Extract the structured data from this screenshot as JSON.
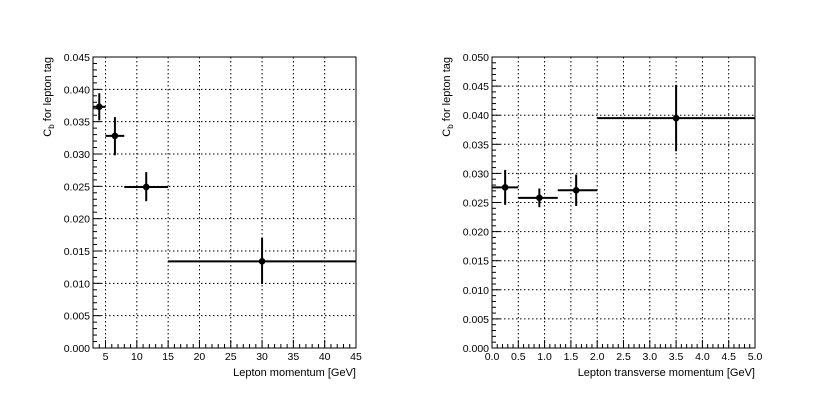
{
  "chart_data": [
    {
      "type": "scatter",
      "xlabel": "Lepton momentum [GeV]",
      "ylabel_main": "C",
      "ylabel_sub": "b",
      "ylabel_rest": " for lepton tag",
      "xlim": [
        3,
        45
      ],
      "ylim": [
        0,
        0.045
      ],
      "xticks": [
        5,
        10,
        15,
        20,
        25,
        30,
        35,
        40,
        45
      ],
      "xtick_labels": [
        "5",
        "10",
        "15",
        "20",
        "25",
        "30",
        "35",
        "40",
        "45"
      ],
      "yticks": [
        0,
        0.005,
        0.01,
        0.015,
        0.02,
        0.025,
        0.03,
        0.035,
        0.04,
        0.045
      ],
      "ytick_labels": [
        "0.000",
        "0.005",
        "0.010",
        "0.015",
        "0.020",
        "0.025",
        "0.030",
        "0.035",
        "0.040",
        "0.045"
      ],
      "grid": true,
      "points": [
        {
          "x": 4,
          "xlo": 3,
          "xhi": 5,
          "y": 0.0373,
          "ylo": 0.0352,
          "yhi": 0.0394
        },
        {
          "x": 6.5,
          "xlo": 5,
          "xhi": 8,
          "y": 0.0328,
          "ylo": 0.0298,
          "yhi": 0.0357
        },
        {
          "x": 11.5,
          "xlo": 8,
          "xhi": 15,
          "y": 0.0249,
          "ylo": 0.0227,
          "yhi": 0.0272
        },
        {
          "x": 30,
          "xlo": 15,
          "xhi": 45,
          "y": 0.0134,
          "ylo": 0.0099,
          "yhi": 0.017
        }
      ]
    },
    {
      "type": "scatter",
      "xlabel": "Lepton transverse momentum [GeV]",
      "ylabel_main": "C",
      "ylabel_sub": "b",
      "ylabel_rest": " for lepton tag",
      "xlim": [
        0,
        5
      ],
      "ylim": [
        0,
        0.05
      ],
      "xticks": [
        0,
        0.5,
        1,
        1.5,
        2,
        2.5,
        3,
        3.5,
        4,
        4.5,
        5
      ],
      "xtick_labels": [
        "0.0",
        "0.5",
        "1.0",
        "1.5",
        "2.0",
        "2.5",
        "3.0",
        "3.5",
        "4.0",
        "4.5",
        "5.0"
      ],
      "yticks": [
        0,
        0.005,
        0.01,
        0.015,
        0.02,
        0.025,
        0.03,
        0.035,
        0.04,
        0.045,
        0.05
      ],
      "ytick_labels": [
        "0.000",
        "0.005",
        "0.010",
        "0.015",
        "0.020",
        "0.025",
        "0.030",
        "0.035",
        "0.040",
        "0.045",
        "0.050"
      ],
      "grid": true,
      "points": [
        {
          "x": 0.25,
          "xlo": 0,
          "xhi": 0.5,
          "y": 0.0276,
          "ylo": 0.0246,
          "yhi": 0.0306
        },
        {
          "x": 0.9,
          "xlo": 0.5,
          "xhi": 1.25,
          "y": 0.0258,
          "ylo": 0.0242,
          "yhi": 0.0274
        },
        {
          "x": 1.6,
          "xlo": 1.25,
          "xhi": 2,
          "y": 0.0271,
          "ylo": 0.0244,
          "yhi": 0.0298
        },
        {
          "x": 3.5,
          "xlo": 2,
          "xhi": 5,
          "y": 0.0395,
          "ylo": 0.0338,
          "yhi": 0.0452
        }
      ]
    }
  ]
}
